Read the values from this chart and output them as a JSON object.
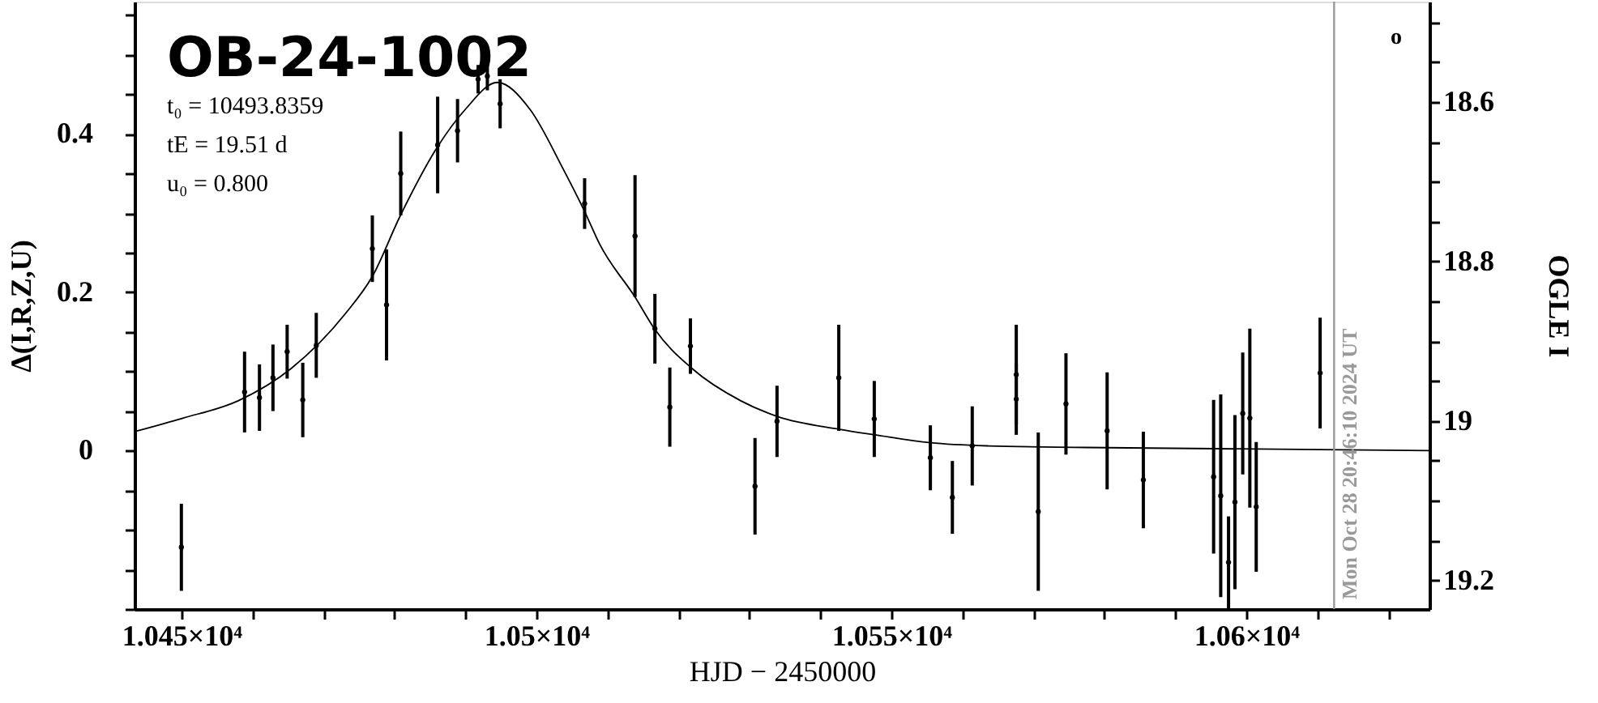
{
  "chart_data": {
    "type": "scatter",
    "title": "OB-24-1002",
    "xlabel": "HJD − 2450000",
    "ylabel": "Δ(I,R,Z,U)",
    "y2label": "OGLE I",
    "annotations": [
      "t₀ = 10493.8359",
      "tE = 19.51 d",
      "u₀ = 0.800",
      "o",
      "Mon Oct 28 20:46:10 2024 UT"
    ],
    "xlim": [
      10443.4,
      10625.8
    ],
    "xticks": [
      {
        "value": 10450,
        "label": "1.045×10⁴"
      },
      {
        "value": 10460,
        "label": null
      },
      {
        "value": 10470,
        "label": null
      },
      {
        "value": 10480,
        "label": null
      },
      {
        "value": 10490,
        "label": null
      },
      {
        "value": 10500,
        "label": "1.05×10⁴"
      },
      {
        "value": 10510,
        "label": null
      },
      {
        "value": 10520,
        "label": null
      },
      {
        "value": 10530,
        "label": null
      },
      {
        "value": 10540,
        "label": null
      },
      {
        "value": 10550,
        "label": "1.055×10⁴"
      },
      {
        "value": 10560,
        "label": null
      },
      {
        "value": 10570,
        "label": null
      },
      {
        "value": 10580,
        "label": null
      },
      {
        "value": 10590,
        "label": null
      },
      {
        "value": 10600,
        "label": "1.06×10⁴"
      },
      {
        "value": 10610,
        "label": null
      },
      {
        "value": 10620,
        "label": null
      }
    ],
    "ylim": [
      -0.2,
      0.567
    ],
    "yticks": [
      {
        "value": -0.2,
        "label": null
      },
      {
        "value": -0.15,
        "label": null
      },
      {
        "value": -0.1,
        "label": null
      },
      {
        "value": -0.05,
        "label": null
      },
      0,
      {
        "value": 0.05,
        "label": null
      },
      {
        "value": 0.1,
        "label": null
      },
      {
        "value": 0.15,
        "label": null
      },
      0.2,
      {
        "value": 0.25,
        "label": null
      },
      {
        "value": 0.3,
        "label": null
      },
      {
        "value": 0.35,
        "label": null
      },
      0.4,
      {
        "value": 0.45,
        "label": null
      },
      {
        "value": 0.5,
        "label": null
      },
      {
        "value": 0.55,
        "label": null
      }
    ],
    "y2lim": [
      19.236,
      18.474
    ],
    "y2ticks": [
      {
        "value": 18.5,
        "label": null
      },
      {
        "value": 18.55,
        "label": null
      },
      18.6,
      {
        "value": 18.65,
        "label": null
      },
      {
        "value": 18.7,
        "label": null
      },
      {
        "value": 18.75,
        "label": null
      },
      18.8,
      {
        "value": 18.85,
        "label": null
      },
      {
        "value": 18.9,
        "label": null
      },
      {
        "value": 18.95,
        "label": null
      },
      19,
      {
        "value": 19.05,
        "label": null
      },
      {
        "value": 19.1,
        "label": null
      },
      {
        "value": 19.15,
        "label": null
      },
      19.2
    ],
    "ref_lines": [
      {
        "axis": "x",
        "value": 10612.37,
        "color": "#999999"
      }
    ],
    "marker": "circle",
    "series": [
      {
        "color": "#000000",
        "x": [
          10450.0,
          10458.9,
          10461.0,
          10462.9,
          10464.9,
          10467.1,
          10469.0,
          10476.9,
          10478.9,
          10480.9,
          10486.1,
          10488.9,
          10491.8,
          10493.1,
          10494.9,
          10506.8,
          10513.9,
          10516.7,
          10518.8,
          10521.7,
          10530.8,
          10533.9,
          10542.6,
          10547.6,
          10555.5,
          10558.6,
          10561.4,
          10567.6,
          10567.6,
          10570.7,
          10574.6,
          10580.4,
          10585.5,
          10595.4,
          10596.4,
          10597.5,
          10598.4,
          10599.5,
          10600.5,
          10601.4,
          10610.4
        ],
        "values": [
          -0.122,
          0.074,
          0.067,
          0.092,
          0.125,
          0.064,
          0.133,
          0.255,
          0.184,
          0.35,
          0.386,
          0.404,
          0.469,
          0.473,
          0.438,
          0.312,
          0.271,
          0.154,
          0.055,
          0.132,
          -0.045,
          0.037,
          0.092,
          0.04,
          -0.009,
          -0.059,
          0.006,
          0.096,
          0.065,
          -0.077,
          0.059,
          0.025,
          -0.037,
          -0.033,
          -0.057,
          -0.141,
          -0.065,
          0.047,
          0.041,
          -0.071,
          0.098
        ],
        "errors": [
          0.055,
          0.051,
          0.042,
          0.042,
          0.034,
          0.047,
          0.041,
          0.042,
          0.07,
          0.053,
          0.061,
          0.04,
          0.018,
          0.018,
          0.031,
          0.032,
          0.077,
          0.044,
          0.05,
          0.035,
          0.061,
          0.045,
          0.067,
          0.048,
          0.041,
          0.046,
          0.05,
          0.063,
          0.045,
          0.1,
          0.064,
          0.074,
          0.061,
          0.097,
          0.128,
          0.058,
          0.11,
          0.077,
          0.113,
          0.082,
          0.07
        ]
      },
      {
        "type": "line",
        "color": "#000000",
        "line_style": "solid",
        "marker": "none",
        "x": [
          10443.4,
          10450.2,
          10458.0,
          10465.5,
          10473.1,
          10476.9,
          10480.8,
          10486.1,
          10490.0,
          10494.5,
          10499.1,
          10503.7,
          10506.8,
          10508.9,
          10513.9,
          10516.7,
          10521.9,
          10528.8,
          10534.0,
          10542.7,
          10547.7,
          10555.5,
          10563.7,
          10577.4,
          10625.8
        ],
        "values": [
          0.024,
          0.041,
          0.063,
          0.104,
          0.173,
          0.22,
          0.296,
          0.384,
          0.431,
          0.465,
          0.431,
          0.357,
          0.302,
          0.261,
          0.194,
          0.153,
          0.104,
          0.063,
          0.043,
          0.027,
          0.02,
          0.01,
          0.006,
          0.004,
          0.0
        ]
      }
    ]
  }
}
